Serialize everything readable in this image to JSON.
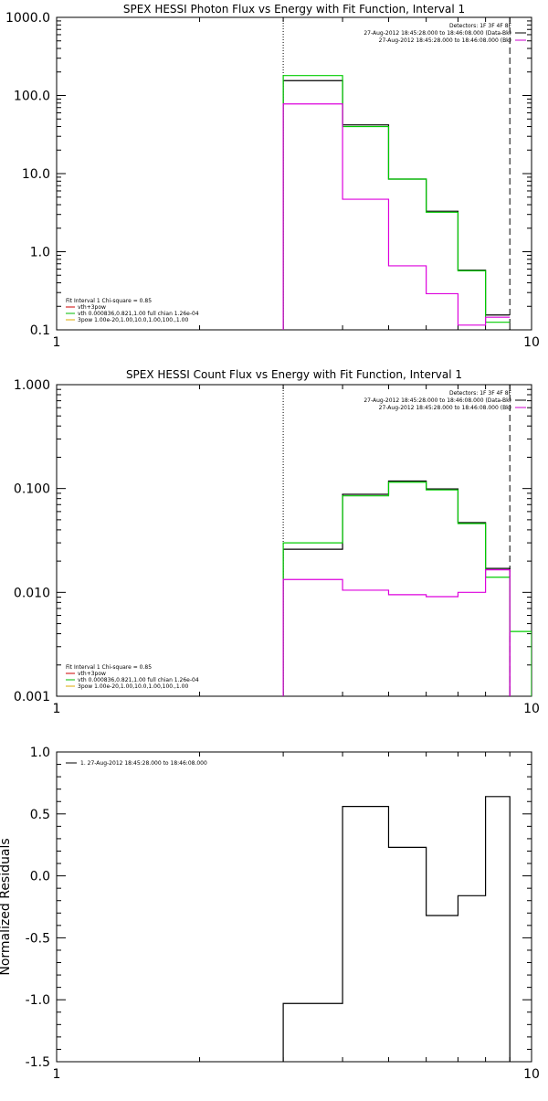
{
  "chart_data": [
    {
      "type": "line",
      "title": "SPEX HESSI Photon Flux vs Energy with Fit Function, Interval 1",
      "xscale": "log",
      "yscale": "log",
      "xlim": [
        1,
        10
      ],
      "ylim": [
        0.1,
        1000
      ],
      "xtick_labels": [
        {
          "v": 1,
          "t": "1"
        },
        {
          "v": 10,
          "t": "10"
        }
      ],
      "ytick_labels": [
        {
          "v": 1000,
          "t": "1000.0"
        },
        {
          "v": 100,
          "t": "100.0"
        },
        {
          "v": 10,
          "t": "10.0"
        },
        {
          "v": 1,
          "t": "1.0"
        },
        {
          "v": 0.1,
          "t": "0.1"
        }
      ],
      "xlabel": "",
      "ylabel": "",
      "vlines": [
        {
          "x": 3.0,
          "style": "dotted"
        },
        {
          "x": 9.0,
          "style": "dashed"
        }
      ],
      "info_text": [
        "Detectors: 1F 3F 4F 8F",
        "27-Aug-2012 18:45:28.000 to 18:46:08.000 (Data-Bk)",
        "27-Aug-2012 18:45:28.000 to 18:46:08.000 (Bk)"
      ],
      "info_colors": [
        "#000000",
        "#000000",
        "#cc00cc"
      ],
      "legend_text": [
        "Fit Interval 1   Chi-square = 0.85",
        "vth+3pow",
        "vth 0.000836,0.821,1.00  full chian 1.26e-04",
        "3pow 1.00e-20,1.00,10.0,1.00,100.,1.00"
      ],
      "legend_colors": [
        "#000000",
        "#cc0000",
        "#00bb00",
        "#ddaa00"
      ],
      "series": [
        {
          "color": "#000000",
          "edges": [
            3,
            4,
            5,
            6,
            7,
            8,
            9
          ],
          "values": [
            155,
            42,
            8.5,
            3.3,
            0.58,
            0.155
          ],
          "drop_last": false
        },
        {
          "color": "#00cc00",
          "edges": [
            3,
            4,
            5,
            6,
            7,
            8,
            9
          ],
          "values": [
            180,
            40,
            8.5,
            3.2,
            0.57,
            0.125
          ],
          "drop_last": false
        },
        {
          "color": "#dd00dd",
          "edges": [
            3,
            4,
            5,
            6,
            7,
            8,
            9
          ],
          "values": [
            78,
            4.7,
            0.66,
            0.29,
            0.115,
            0.145
          ],
          "drop_last": false
        }
      ]
    },
    {
      "type": "line",
      "title": "SPEX HESSI Count Flux vs Energy with Fit Function, Interval 1",
      "xscale": "log",
      "yscale": "log",
      "xlim": [
        1,
        10
      ],
      "ylim": [
        0.001,
        1
      ],
      "xtick_labels": [
        {
          "v": 1,
          "t": "1"
        },
        {
          "v": 10,
          "t": "10"
        }
      ],
      "ytick_labels": [
        {
          "v": 1,
          "t": "1.000"
        },
        {
          "v": 0.1,
          "t": "0.100"
        },
        {
          "v": 0.01,
          "t": "0.010"
        },
        {
          "v": 0.001,
          "t": "0.001"
        }
      ],
      "xlabel": "",
      "ylabel": "",
      "vlines": [
        {
          "x": 3.0,
          "style": "dotted"
        },
        {
          "x": 9.0,
          "style": "dashed"
        }
      ],
      "info_text": [
        "Detectors: 1F 3F 4F 8F",
        "27-Aug-2012 18:45:28.000 to 18:46:08.000 (Data-Bk)",
        "27-Aug-2012 18:45:28.000 to 18:46:08.000 (Bk)"
      ],
      "info_colors": [
        "#000000",
        "#000000",
        "#cc00cc"
      ],
      "legend_text": [
        "Fit Interval 1   Chi-square = 0.85",
        "vth+3pow",
        "vth 0.000836,0.821,1.00  full chian 1.26e-04",
        "3pow 1.00e-20,1.00,10.0,1.00,100.,1.00"
      ],
      "legend_colors": [
        "#000000",
        "#cc0000",
        "#00bb00",
        "#ddaa00"
      ],
      "series": [
        {
          "color": "#000000",
          "edges": [
            3,
            4,
            5,
            6,
            7,
            8,
            9
          ],
          "values": [
            0.026,
            0.088,
            0.118,
            0.099,
            0.047,
            0.017
          ],
          "drop_last": true
        },
        {
          "color": "#00cc00",
          "edges": [
            3,
            4,
            5,
            6,
            7,
            8,
            9,
            10
          ],
          "values": [
            0.03,
            0.085,
            0.115,
            0.097,
            0.046,
            0.014,
            0.0042
          ],
          "drop_last": true
        },
        {
          "color": "#dd00dd",
          "edges": [
            3,
            4,
            5,
            6,
            7,
            8,
            9
          ],
          "values": [
            0.0133,
            0.0105,
            0.0095,
            0.0091,
            0.01,
            0.0165
          ],
          "drop_last": true
        }
      ]
    },
    {
      "type": "line",
      "title": "",
      "xscale": "log",
      "yscale": "linear",
      "xlim": [
        1,
        10
      ],
      "ylim": [
        -1.5,
        1.0
      ],
      "xtick_labels": [
        {
          "v": 1,
          "t": "1"
        },
        {
          "v": 10,
          "t": "10"
        }
      ],
      "ytick_labels": [
        {
          "v": 1.0,
          "t": "1.0"
        },
        {
          "v": 0.5,
          "t": "0.5"
        },
        {
          "v": 0.0,
          "t": "0.0"
        },
        {
          "v": -0.5,
          "t": "-0.5"
        },
        {
          "v": -1.0,
          "t": "-1.0"
        },
        {
          "v": -1.5,
          "t": "-1.5"
        }
      ],
      "xlabel": "",
      "ylabel": "Normalized Residuals",
      "vlines": [],
      "info_text": [],
      "info_colors": [],
      "legend_text": [
        "1. 27-Aug-2012 18:45:28.000 to 18:46:08.000"
      ],
      "legend_colors": [
        "#000000"
      ],
      "series": [
        {
          "color": "#000000",
          "edges": [
            3,
            4,
            5,
            6,
            7,
            8,
            9
          ],
          "values": [
            -1.03,
            0.56,
            0.23,
            -0.32,
            -0.16,
            0.64
          ],
          "drop_last": true
        }
      ]
    }
  ]
}
